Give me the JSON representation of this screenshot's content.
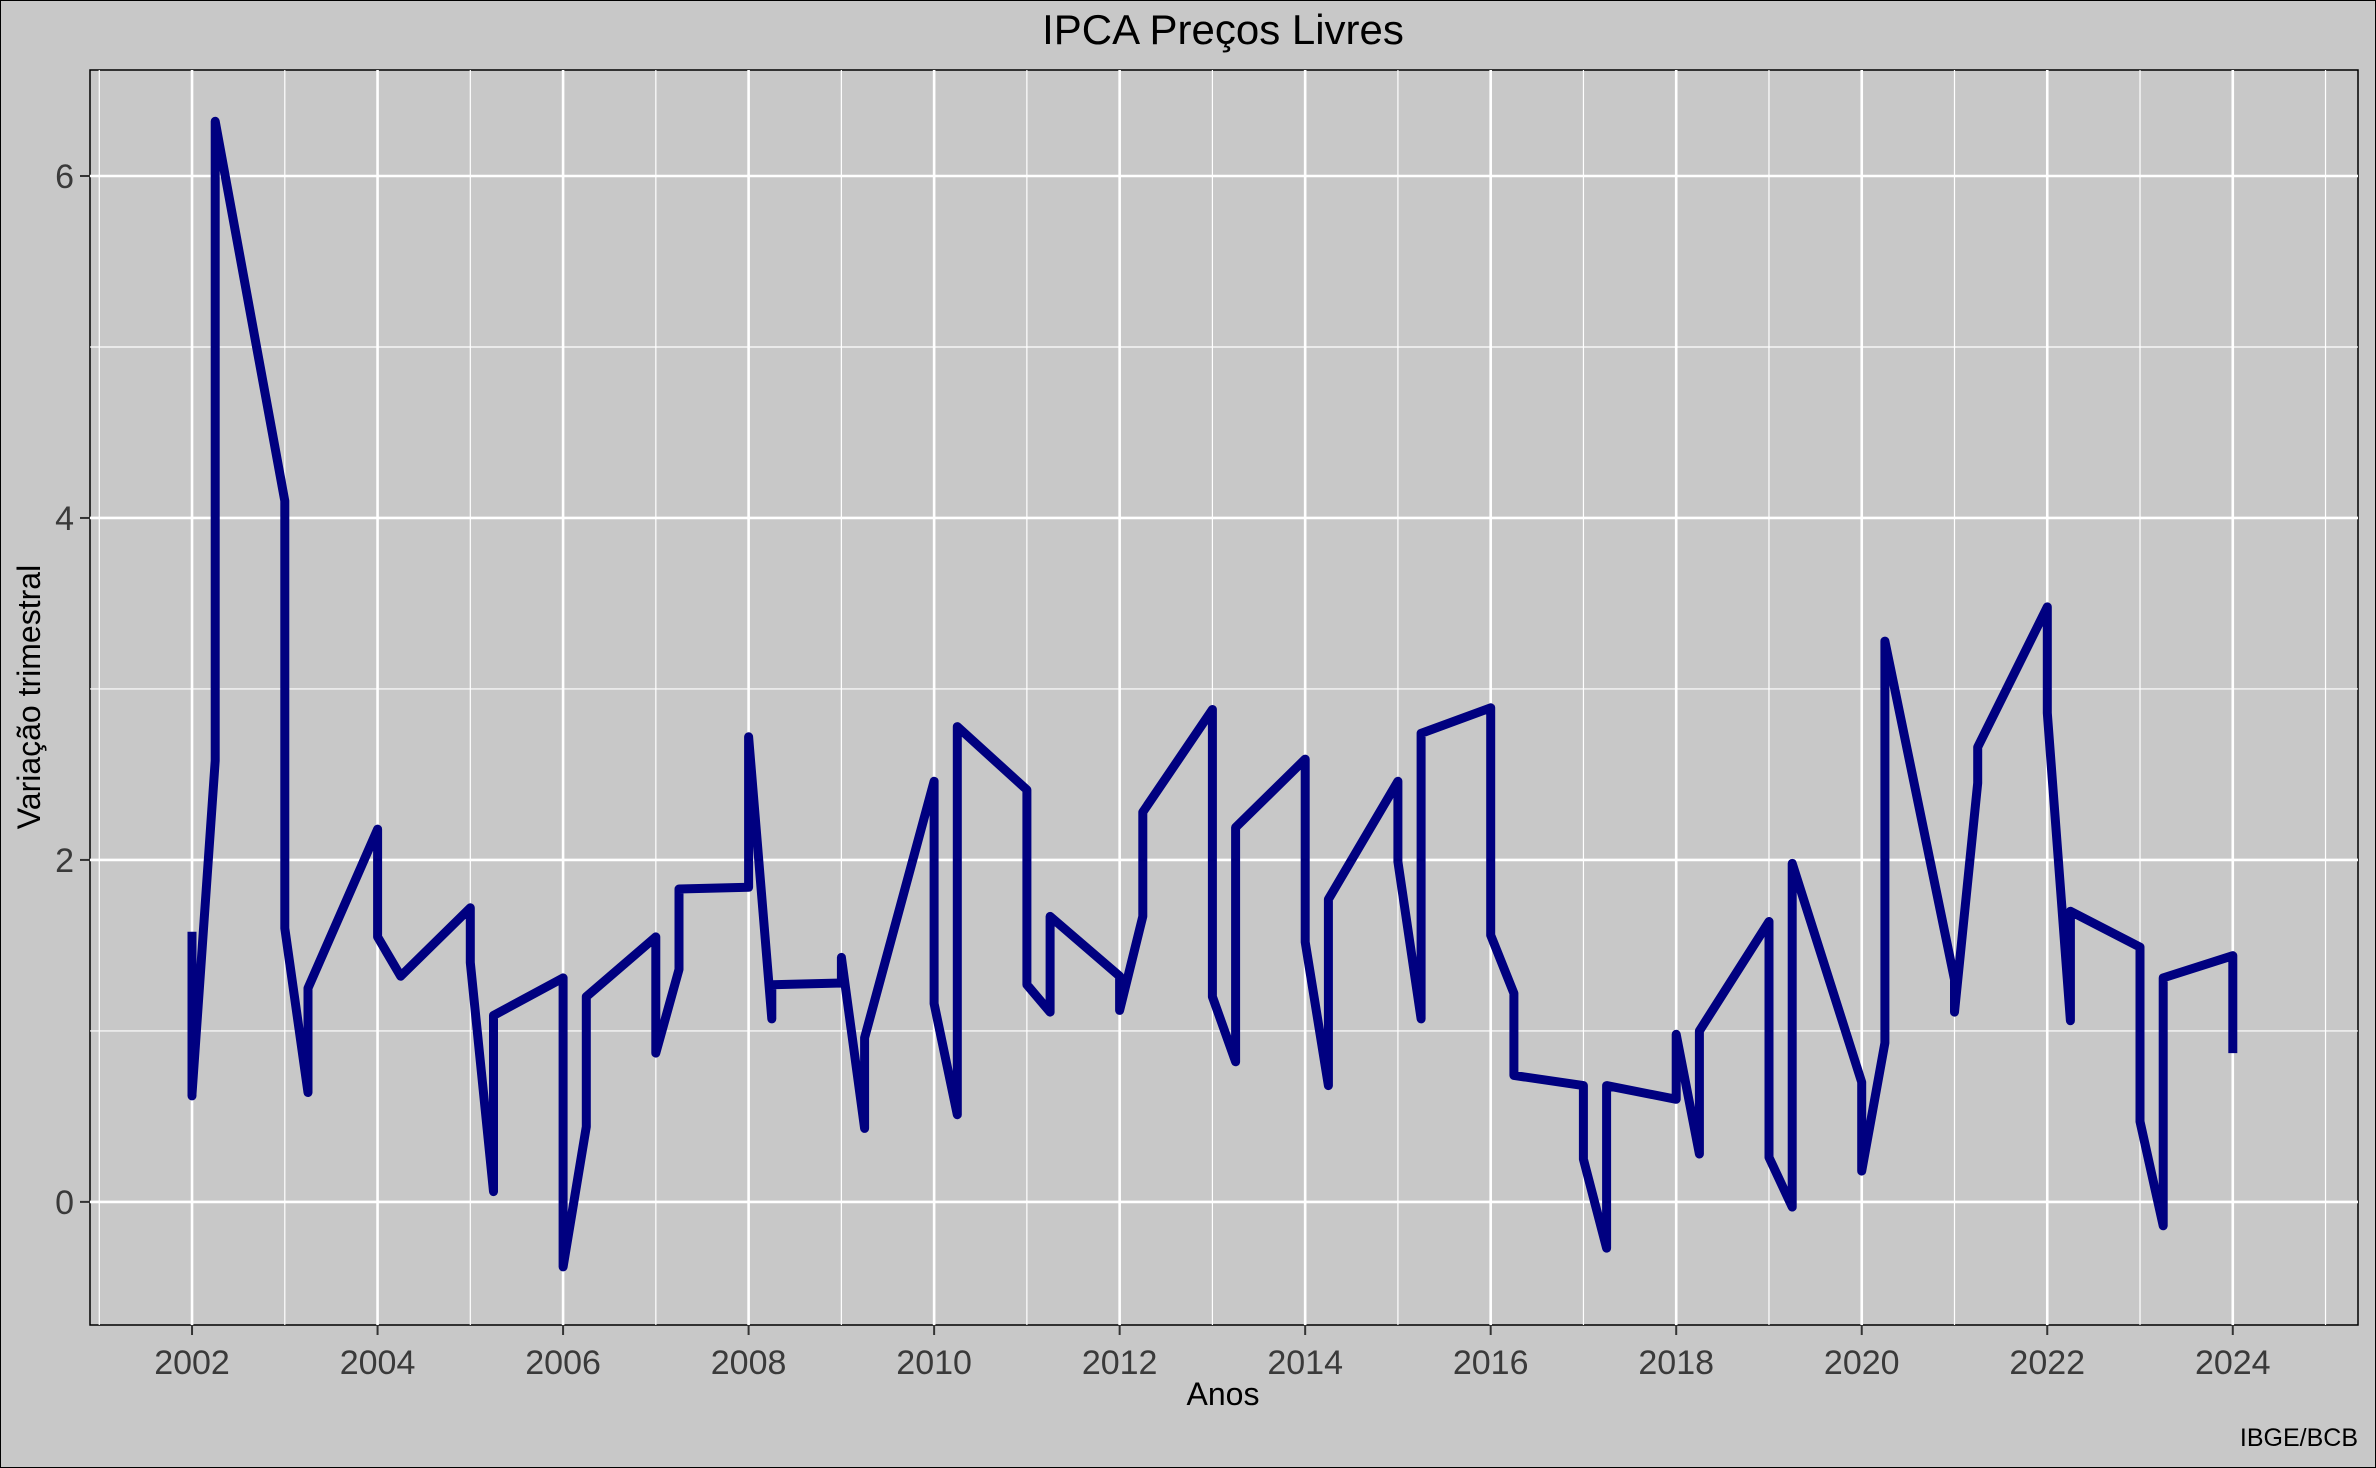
{
  "chart_data": {
    "type": "line",
    "title": "IPCA Preços Livres",
    "xlabel": "Anos",
    "ylabel": "Variação trimestral",
    "caption": "IBGE/BCB",
    "xlim": [
      2000.9,
      2025.35
    ],
    "ylim": [
      -0.72,
      6.62
    ],
    "x_ticks": [
      "2002",
      "2004",
      "2006",
      "2008",
      "2010",
      "2012",
      "2014",
      "2016",
      "2018",
      "2020",
      "2022",
      "2024"
    ],
    "y_ticks": [
      "0",
      "2",
      "4",
      "6"
    ],
    "grid": true,
    "line_color": "#000080",
    "series": [
      {
        "x": [
          2002.0,
          2002.0,
          2002.0,
          2002.25,
          2002.25,
          2002.25,
          2003.0,
          2003.0,
          2003.25,
          2003.25,
          2004.0,
          2004.0,
          2004.25,
          2004.25,
          2005.0,
          2005.0,
          2005.25,
          2005.25,
          2006.0,
          2006.0,
          2006.25,
          2006.25,
          2007.0,
          2007.0,
          2007.25,
          2007.25,
          2008.0,
          2008.0,
          2008.25,
          2008.25,
          2009.0,
          2009.0,
          2009.25,
          2009.25,
          2010.0,
          2010.0,
          2010.25,
          2010.25,
          2011.0,
          2011.0,
          2011.25,
          2011.25,
          2012.0,
          2012.0,
          2012.25,
          2012.25,
          2013.0,
          2013.0,
          2013.25,
          2013.25,
          2014.0,
          2014.0,
          2014.25,
          2014.25,
          2015.0,
          2015.0,
          2015.25,
          2015.25,
          2016.0,
          2016.0,
          2016.25,
          2016.25,
          2017.0,
          2017.0,
          2017.25,
          2017.25,
          2018.0,
          2018.0,
          2018.25,
          2018.25,
          2019.0,
          2019.0,
          2019.25,
          2019.25,
          2020.0,
          2020.0,
          2020.25,
          2020.25,
          2021.0,
          2021.0,
          2021.25,
          2021.25,
          2022.0,
          2022.0,
          2022.25,
          2022.25,
          2023.0,
          2023.0,
          2023.25,
          2023.25,
          2024.0,
          2024.0
        ],
        "y": [
          1.58,
          0.62,
          0.63,
          2.58,
          6.32,
          6.32,
          4.1,
          1.6,
          0.64,
          1.25,
          2.18,
          1.55,
          1.32,
          1.32,
          1.72,
          1.4,
          0.06,
          1.09,
          1.31,
          -0.38,
          0.44,
          1.2,
          1.55,
          0.87,
          1.36,
          1.83,
          1.84,
          2.72,
          1.07,
          1.27,
          1.28,
          1.43,
          0.43,
          0.96,
          2.46,
          1.16,
          0.51,
          2.78,
          2.41,
          1.27,
          1.11,
          1.67,
          1.32,
          1.12,
          1.67,
          2.28,
          2.88,
          1.2,
          0.82,
          2.19,
          2.59,
          1.52,
          0.68,
          1.77,
          2.46,
          1.99,
          1.07,
          2.74,
          2.89,
          1.56,
          1.22,
          0.74,
          0.68,
          0.25,
          -0.27,
          0.68,
          0.6,
          0.98,
          0.28,
          1.0,
          1.64,
          0.26,
          -0.03,
          1.98,
          0.7,
          0.18,
          0.93,
          3.28,
          1.3,
          1.11,
          2.45,
          2.66,
          3.48,
          2.86,
          1.06,
          1.7,
          1.49,
          0.47,
          -0.14,
          1.31,
          1.44,
          0.87
        ]
      }
    ]
  }
}
